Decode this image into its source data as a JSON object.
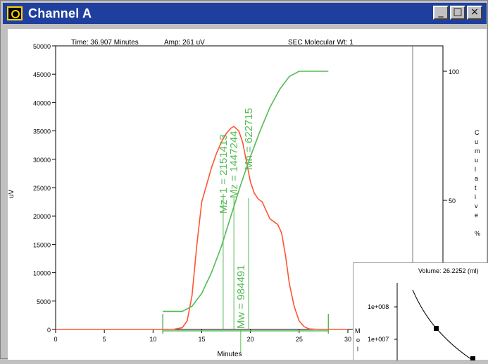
{
  "window": {
    "title": "Channel A",
    "buttons": {
      "minimize": "_",
      "maximize": "□",
      "close": "×"
    }
  },
  "header": {
    "time": "Time: 36.907 Minutes",
    "amp": "Amp: 261 uV",
    "mode": "SEC Molecular Wt: 1"
  },
  "chart_data": {
    "type": "line",
    "xlabel": "Minutes",
    "ylabel": "uV",
    "right_ylabel": "Cumulative %",
    "xlim": [
      0,
      30
    ],
    "ylim": [
      0,
      50000
    ],
    "right_ylim": [
      0,
      100
    ],
    "x_ticks": [
      0,
      5,
      10,
      15,
      20,
      25,
      30
    ],
    "x_tick_labels": [
      "0",
      "5",
      "10",
      "15",
      "20",
      "25",
      "30"
    ],
    "y_ticks": [
      0,
      5000,
      10000,
      15000,
      20000,
      25000,
      30000,
      35000,
      40000,
      45000,
      50000
    ],
    "y_tick_labels": [
      "0",
      "5000",
      "10000",
      "15000",
      "20000",
      "25000",
      "30000",
      "35000",
      "40000",
      "45000",
      "50000"
    ],
    "right_ticks": [
      50,
      100
    ],
    "right_tick_labels": [
      "50",
      "100"
    ],
    "series": [
      {
        "color": "#ff5533",
        "x": [
          0,
          4,
          12,
          13,
          13.5,
          14,
          14.5,
          15,
          15.5,
          16,
          16.5,
          17,
          17.5,
          18,
          18.3,
          18.8,
          19.2,
          19.6,
          20,
          20.4,
          20.8,
          21.2,
          21.6,
          22,
          22.4,
          22.8,
          23.2,
          23.6,
          24,
          24.5,
          25,
          25.5,
          26,
          27,
          30
        ],
        "y": [
          0,
          0,
          0,
          300,
          1500,
          6000,
          15000,
          22500,
          25500,
          28500,
          31000,
          33000,
          34500,
          35500,
          35800,
          35000,
          33000,
          29500,
          26000,
          24000,
          23000,
          22500,
          21000,
          19500,
          19000,
          18500,
          17000,
          13000,
          8000,
          4000,
          1500,
          500,
          100,
          0,
          0
        ]
      },
      {
        "color": "#55bb55",
        "x": [
          11,
          13,
          14,
          15,
          16,
          17,
          18,
          19,
          20,
          21,
          22,
          23,
          24,
          25,
          26,
          28
        ],
        "y": [
          7,
          7,
          9,
          14,
          22,
          32,
          44,
          56,
          67,
          77,
          86,
          93,
          98,
          100,
          100,
          100
        ]
      }
    ],
    "baseline": {
      "x_start": 11,
      "x_end": 28
    },
    "annotations": [
      {
        "text": "Mz+1 = 2151413",
        "x": 17.2
      },
      {
        "text": "Mz = 1447244",
        "x": 18.3
      },
      {
        "text": "Mn = 622715",
        "x": 19.8
      },
      {
        "text": "Mw = 984491",
        "x": 19.0
      }
    ]
  },
  "inset": {
    "title": "Volume: 26.2252 (ml)",
    "y_tick_labels": [
      "1e+008",
      "1e+007"
    ],
    "ylabel_letters": [
      "M",
      "o",
      "l"
    ]
  },
  "colors": {
    "titlebar": "#1f3f9f",
    "trace": "#ff5533",
    "cumulative": "#55bb55"
  }
}
